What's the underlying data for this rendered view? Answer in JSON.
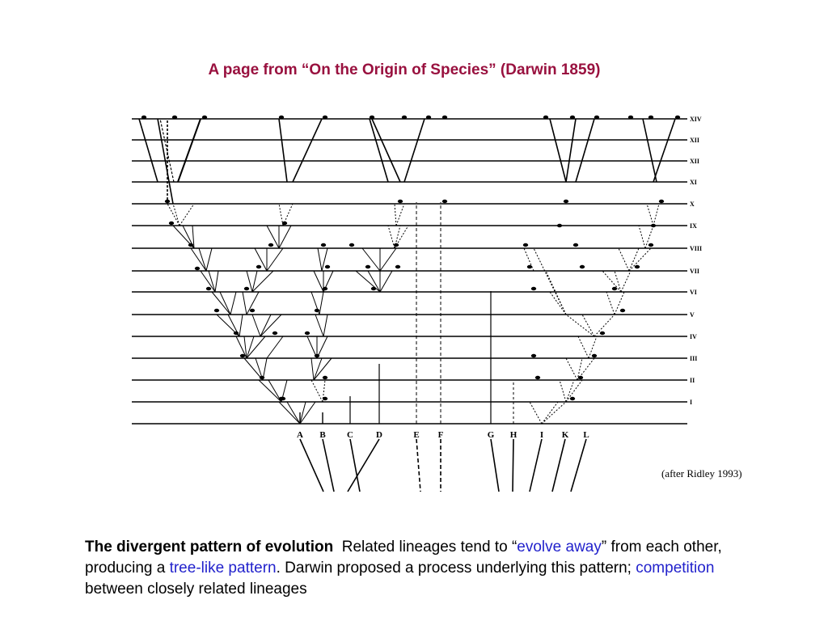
{
  "title": "A page from “On the Origin of Species” (Darwin 1859)",
  "credit": "(after Ridley 1993)",
  "diagram": {
    "generation_labels": [
      "XIV",
      "XII",
      "XII",
      "XI",
      "X",
      "IX",
      "VIII",
      "VII",
      "VI",
      "V",
      "IV",
      "III",
      "II",
      "I"
    ],
    "species_labels": [
      "A",
      "B",
      "C",
      "D",
      "E",
      "F",
      "G",
      "H",
      "I",
      "K",
      "L"
    ]
  },
  "caption": {
    "bold": "The divergent pattern of evolution",
    "text1": "Related lineages tend to “",
    "highlight1": "evolve away",
    "text2": "”  from each other, producing a ",
    "highlight2": "tree-like pattern",
    "text3": ".  Darwin proposed a process underlying this pattern; ",
    "highlight3": "competition",
    "text4": " between closely related lineages"
  },
  "colors": {
    "title": "#99113f",
    "highlight": "#2222cc",
    "ink": "#000000"
  }
}
